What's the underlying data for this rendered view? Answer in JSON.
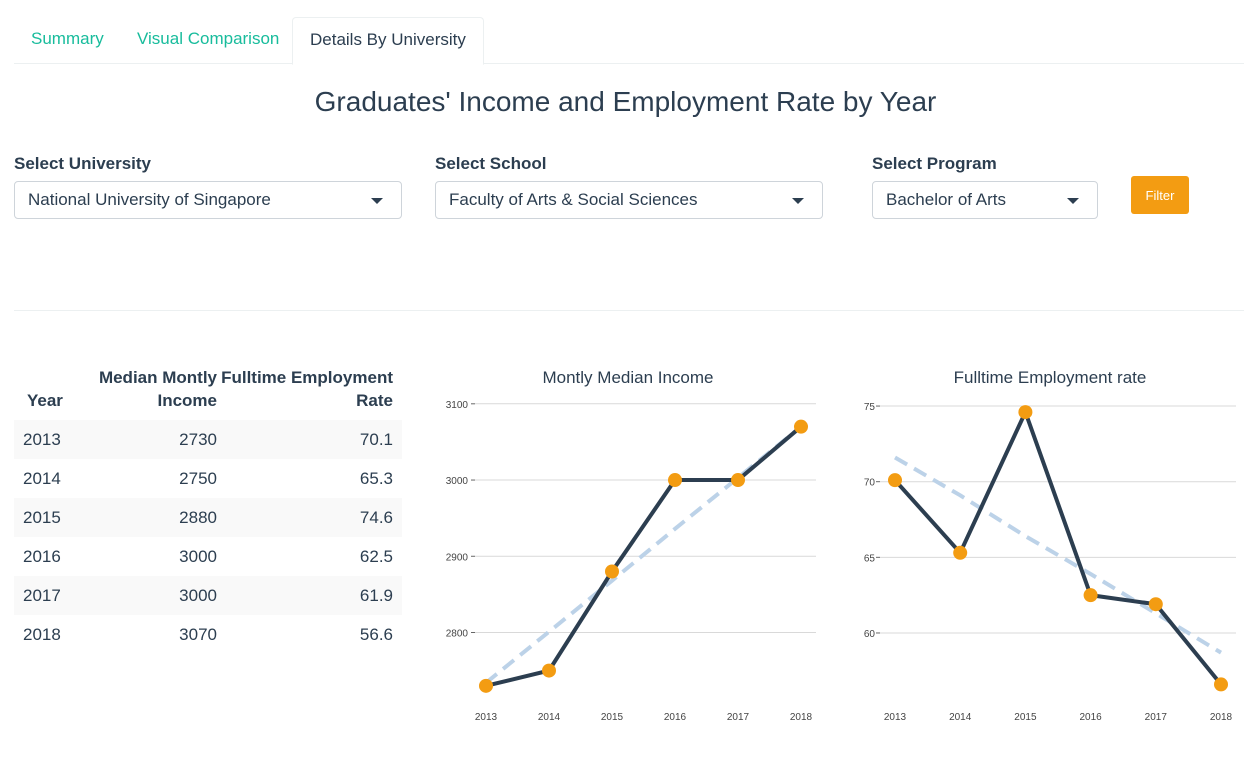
{
  "tabs": [
    {
      "label": "Summary"
    },
    {
      "label": "Visual Comparison"
    },
    {
      "label": "Details By University"
    }
  ],
  "page_title": "Graduates' Income and Employment Rate by Year",
  "filters": {
    "university": {
      "label": "Select University",
      "value": "National University of Singapore"
    },
    "school": {
      "label": "Select School",
      "value": "Faculty of Arts & Social Sciences"
    },
    "program": {
      "label": "Select Program",
      "value": "Bachelor of Arts"
    },
    "button_label": "Filter"
  },
  "table": {
    "headers": [
      "Year",
      "Median Montly Income",
      "Fulltime Employment Rate"
    ],
    "header_lines": [
      [
        "Year"
      ],
      [
        "Median Montly",
        "Income"
      ],
      [
        "Fulltime Employment",
        "Rate"
      ]
    ],
    "rows": [
      [
        "2013",
        "2730",
        "70.1"
      ],
      [
        "2014",
        "2750",
        "65.3"
      ],
      [
        "2015",
        "2880",
        "74.6"
      ],
      [
        "2016",
        "3000",
        "62.5"
      ],
      [
        "2017",
        "3000",
        "61.9"
      ],
      [
        "2018",
        "3070",
        "56.6"
      ]
    ]
  },
  "colors": {
    "accent": "#18bc9c",
    "primary": "#2c3e50",
    "point": "#f39c12",
    "trend": "#bcd2e8",
    "grid": "#d9d9d9"
  },
  "chart_data": [
    {
      "type": "line",
      "title": "Montly Median Income",
      "x": [
        2013,
        2014,
        2015,
        2016,
        2017,
        2018
      ],
      "series": [
        {
          "values": [
            2730,
            2750,
            2880,
            3000,
            3000,
            3070
          ]
        }
      ],
      "trend": [
        2734,
        2801,
        2868,
        2936,
        3003,
        3070
      ],
      "yticks": [
        2800,
        2900,
        3000,
        3100
      ],
      "ylim": [
        2718,
        3105
      ],
      "xlabel": "",
      "ylabel": "",
      "grid": true
    },
    {
      "type": "line",
      "title": "Fulltime Employment rate",
      "x": [
        2013,
        2014,
        2015,
        2016,
        2017,
        2018
      ],
      "series": [
        {
          "values": [
            70.1,
            65.3,
            74.6,
            62.5,
            61.9,
            56.6
          ]
        }
      ],
      "trend": [
        71.6,
        69.1,
        66.4,
        63.9,
        61.3,
        58.7
      ],
      "yticks": [
        60,
        65,
        70,
        75
      ],
      "ylim": [
        55.9,
        75.4
      ],
      "xlabel": "",
      "ylabel": "",
      "grid": true
    }
  ]
}
